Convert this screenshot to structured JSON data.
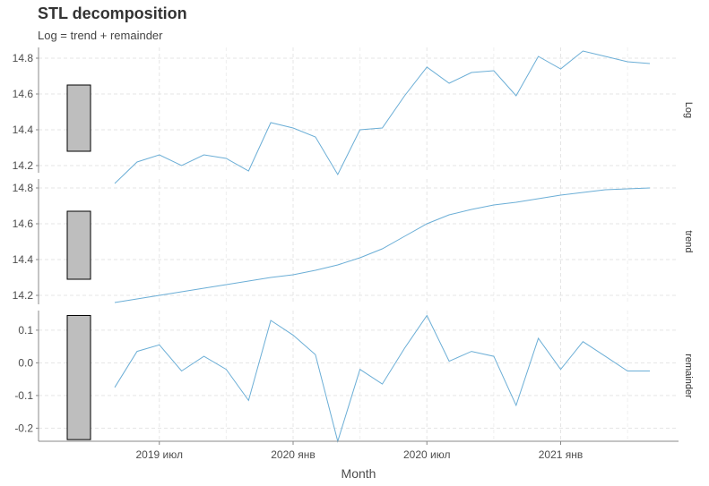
{
  "title": "STL decomposition",
  "subtitle": "Log = trend + remainder",
  "chart_data": {
    "type": "line",
    "xlabel": "Month",
    "x_ticks": [
      "2019 июл",
      "2020 янв",
      "2020 июл",
      "2021 янв"
    ],
    "x": [
      "2019-05",
      "2019-06",
      "2019-07",
      "2019-08",
      "2019-09",
      "2019-10",
      "2019-11",
      "2019-12",
      "2020-01",
      "2020-02",
      "2020-03",
      "2020-04",
      "2020-05",
      "2020-06",
      "2020-07",
      "2020-08",
      "2020-09",
      "2020-10",
      "2020-11",
      "2020-12",
      "2021-01",
      "2021-02",
      "2021-03",
      "2021-04",
      "2021-05"
    ],
    "line_color": "#6baed6",
    "grid": true,
    "panels": [
      {
        "name": "Log",
        "ylim": [
          14.16,
          14.86
        ],
        "y_ticks": [
          "14.2",
          "14.4",
          "14.6",
          "14.8"
        ],
        "y_tick_values": [
          14.2,
          14.4,
          14.6,
          14.8
        ],
        "values": [
          14.1,
          14.22,
          14.26,
          14.2,
          14.26,
          14.24,
          14.17,
          14.44,
          14.41,
          14.36,
          14.15,
          14.4,
          14.41,
          14.59,
          14.75,
          14.66,
          14.72,
          14.73,
          14.59,
          14.81,
          14.74,
          14.84,
          14.81,
          14.78,
          14.77
        ],
        "scale_bar": [
          14.28,
          14.65
        ]
      },
      {
        "name": "trend",
        "ylim": [
          14.15,
          14.85
        ],
        "y_ticks": [
          "14.2",
          "14.4",
          "14.6",
          "14.8"
        ],
        "y_tick_values": [
          14.2,
          14.4,
          14.6,
          14.8
        ],
        "values": [
          14.16,
          14.18,
          14.2,
          14.22,
          14.24,
          14.26,
          14.28,
          14.3,
          14.315,
          14.34,
          14.37,
          14.41,
          14.46,
          14.53,
          14.6,
          14.65,
          14.68,
          14.705,
          14.72,
          14.74,
          14.76,
          14.775,
          14.79,
          14.795,
          14.8
        ],
        "scale_bar": [
          14.29,
          14.67
        ]
      },
      {
        "name": "remainder",
        "ylim": [
          -0.24,
          0.16
        ],
        "y_ticks": [
          "-0.2",
          "-0.1",
          "0.0",
          "0.1"
        ],
        "y_tick_values": [
          -0.2,
          -0.1,
          0.0,
          0.1
        ],
        "values": [
          -0.075,
          0.035,
          0.055,
          -0.025,
          0.02,
          -0.02,
          -0.115,
          0.13,
          0.085,
          0.025,
          -0.24,
          -0.02,
          -0.065,
          0.045,
          0.145,
          0.005,
          0.035,
          0.02,
          -0.13,
          0.075,
          -0.02,
          0.065,
          0.02,
          -0.025,
          -0.025
        ],
        "scale_bar": [
          -0.235,
          0.145
        ]
      }
    ]
  }
}
